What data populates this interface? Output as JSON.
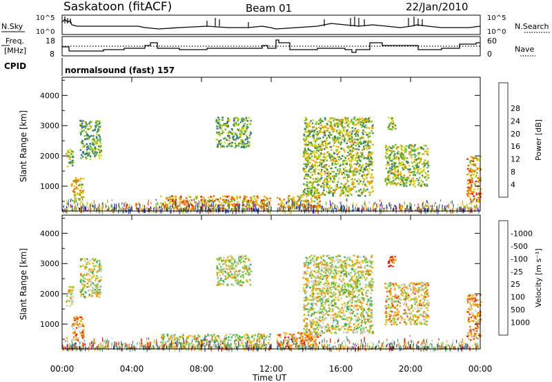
{
  "header": {
    "station": "Saskatoon (fitACF)",
    "beam": "Beam 01",
    "date": "22/Jan/2010"
  },
  "sky_panel": {
    "left_label": "N.Sky",
    "right_label": "N.Search",
    "ticks": [
      "10^5",
      "10^0"
    ],
    "right_ticks": [
      "10^5",
      "10^0"
    ]
  },
  "freq_panel": {
    "left_label_1": "Freq.",
    "left_label_2": "[MHz]",
    "ticks": [
      "18",
      "8"
    ],
    "right_label": "Nave",
    "right_ticks": [
      "60",
      "0"
    ]
  },
  "cpid": {
    "label": "CPID",
    "text": "normalsound (fast) 157"
  },
  "time_axis": {
    "title": "Time UT",
    "ticks": [
      "00:00",
      "04:00",
      "08:00",
      "12:00",
      "16:00",
      "20:00",
      "00:00"
    ]
  },
  "chart_data": [
    {
      "type": "heatmap",
      "name": "power",
      "ylabel": "Slant Range [km]",
      "ylim": [
        180,
        4600
      ],
      "yticks": [
        "1000",
        "2000",
        "3000",
        "4000"
      ],
      "xlim_hours": [
        0,
        24
      ],
      "colorbar": {
        "title": "Power [dB]",
        "labels": [
          "4",
          "8",
          "12",
          "16",
          "20",
          "24",
          "28"
        ],
        "colors": [
          "#1a1aff",
          "#1a3ccc",
          "#2a6a9a",
          "#3a8a5a",
          "#6abb2a",
          "#d4d400",
          "#f5a000",
          "#f56000",
          "#e82000"
        ]
      },
      "echoes": [
        {
          "t0": 0.2,
          "t1": 0.6,
          "r0": 1600,
          "r1": 2300,
          "level": 0.55
        },
        {
          "t0": 0.5,
          "t1": 1.2,
          "r0": 500,
          "r1": 1300,
          "level": 0.65
        },
        {
          "t0": 1.0,
          "t1": 2.2,
          "r0": 1900,
          "r1": 3200,
          "level": 0.45
        },
        {
          "t0": 5.6,
          "t1": 11.9,
          "r0": 250,
          "r1": 700,
          "level": 0.75
        },
        {
          "t0": 8.8,
          "t1": 10.8,
          "r0": 2300,
          "r1": 3300,
          "level": 0.45
        },
        {
          "t0": 12.3,
          "t1": 14.8,
          "r0": 300,
          "r1": 750,
          "level": 0.7
        },
        {
          "t0": 13.8,
          "t1": 17.8,
          "r0": 700,
          "r1": 3300,
          "level": 0.55
        },
        {
          "t0": 18.5,
          "t1": 21.0,
          "r0": 1000,
          "r1": 2400,
          "level": 0.55
        },
        {
          "t0": 18.6,
          "t1": 19.1,
          "r0": 2900,
          "r1": 3300,
          "level": 0.45
        },
        {
          "t0": 23.2,
          "t1": 24.0,
          "r0": 500,
          "r1": 2000,
          "level": 0.75
        }
      ]
    },
    {
      "type": "heatmap",
      "name": "velocity",
      "ylabel": "Slant Range [km]",
      "ylim": [
        180,
        4600
      ],
      "yticks": [
        "1000",
        "2000",
        "3000",
        "4000"
      ],
      "xlim_hours": [
        0,
        24
      ],
      "colorbar": {
        "title": "Velocity [m s⁻¹]",
        "labels": [
          "1000",
          "500",
          "100",
          "25",
          "-25",
          "-100",
          "-500",
          "-1000"
        ],
        "colors": [
          "#2a3cb0",
          "#3a78a0",
          "#3aaa60",
          "#6ad040",
          "#c8c8c0",
          "#f5b800",
          "#f58000",
          "#f04000",
          "#e00000"
        ]
      },
      "echoes": [
        {
          "t0": 0.2,
          "t1": 0.6,
          "r0": 1600,
          "r1": 2300,
          "level": 0.55
        },
        {
          "t0": 0.5,
          "t1": 1.2,
          "r0": 500,
          "r1": 1300,
          "level": 0.7
        },
        {
          "t0": 1.0,
          "t1": 2.2,
          "r0": 1900,
          "r1": 3200,
          "level": 0.5
        },
        {
          "t0": 5.6,
          "t1": 11.9,
          "r0": 250,
          "r1": 700,
          "level": 0.45
        },
        {
          "t0": 8.8,
          "t1": 10.8,
          "r0": 2300,
          "r1": 3300,
          "level": 0.5
        },
        {
          "t0": 12.3,
          "t1": 14.8,
          "r0": 300,
          "r1": 750,
          "level": 0.7
        },
        {
          "t0": 13.8,
          "t1": 17.8,
          "r0": 700,
          "r1": 3300,
          "level": 0.5
        },
        {
          "t0": 18.5,
          "t1": 21.0,
          "r0": 1000,
          "r1": 2400,
          "level": 0.6
        },
        {
          "t0": 18.6,
          "t1": 19.1,
          "r0": 2900,
          "r1": 3300,
          "level": 0.8
        },
        {
          "t0": 23.2,
          "t1": 24.0,
          "r0": 500,
          "r1": 2000,
          "level": 0.7
        }
      ]
    }
  ]
}
